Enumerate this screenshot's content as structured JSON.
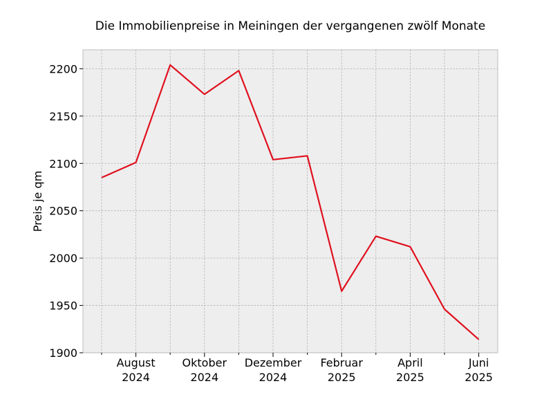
{
  "chart_data": {
    "type": "line",
    "title": "Die Immobilienpreise in Meiningen der vergangenen zwölf Monate",
    "xlabel": "",
    "ylabel": "Preis je qm",
    "x": [
      "2024-07",
      "2024-08",
      "2024-09",
      "2024-10",
      "2024-11",
      "2024-12",
      "2025-01",
      "2025-02",
      "2025-03",
      "2025-04",
      "2025-05",
      "2025-06"
    ],
    "x_tick_labels": [
      {
        "x": "2024-08",
        "line1": "August",
        "line2": "2024"
      },
      {
        "x": "2024-10",
        "line1": "Oktober",
        "line2": "2024"
      },
      {
        "x": "2024-12",
        "line1": "Dezember",
        "line2": "2024"
      },
      {
        "x": "2025-02",
        "line1": "Februar",
        "line2": "2025"
      },
      {
        "x": "2025-04",
        "line1": "April",
        "line2": "2025"
      },
      {
        "x": "2025-06",
        "line1": "Juni",
        "line2": "2025"
      }
    ],
    "minor_x_ticks": [
      "2024-07",
      "2024-09",
      "2024-11",
      "2025-01",
      "2025-03",
      "2025-05"
    ],
    "series": [
      {
        "values": [
          2085,
          2101,
          2204,
          2173,
          2198,
          2104,
          2108,
          1965,
          2023,
          2012,
          1946,
          1914
        ],
        "color": "#e0101e"
      }
    ],
    "ylim": [
      1900,
      2220
    ],
    "yticks": [
      1900,
      1950,
      2000,
      2050,
      2100,
      2150,
      2200
    ],
    "grid": true,
    "background": "#eeeeee"
  }
}
